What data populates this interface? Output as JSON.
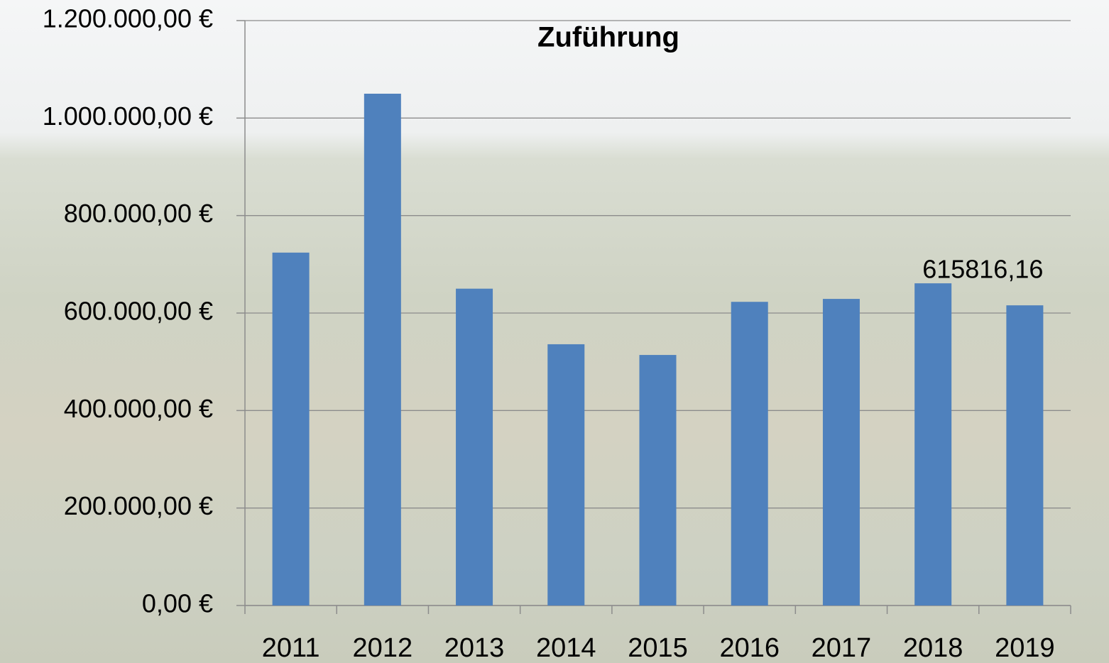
{
  "chart_data": {
    "type": "bar",
    "title": "Zuführung",
    "categories": [
      "2011",
      "2012",
      "2013",
      "2014",
      "2015",
      "2016",
      "2017",
      "2018",
      "2019"
    ],
    "values": [
      724000,
      1050000,
      650000,
      536000,
      514000,
      623000,
      629000,
      661000,
      615816.16
    ],
    "value_labels": [
      null,
      null,
      null,
      null,
      null,
      null,
      null,
      null,
      "615816,16"
    ],
    "color": "#4f81bd",
    "ylim": [
      0,
      1200000
    ],
    "yticks": [
      {
        "value": 0,
        "label": "0,00 €"
      },
      {
        "value": 200000,
        "label": "200.000,00 €"
      },
      {
        "value": 400000,
        "label": "400.000,00 €"
      },
      {
        "value": 600000,
        "label": "600.000,00 €"
      },
      {
        "value": 800000,
        "label": "800.000,00 €"
      },
      {
        "value": 1000000,
        "label": "1.000.000,00 €"
      },
      {
        "value": 1200000,
        "label": "1.200.000,00 €"
      }
    ],
    "grid": true
  }
}
